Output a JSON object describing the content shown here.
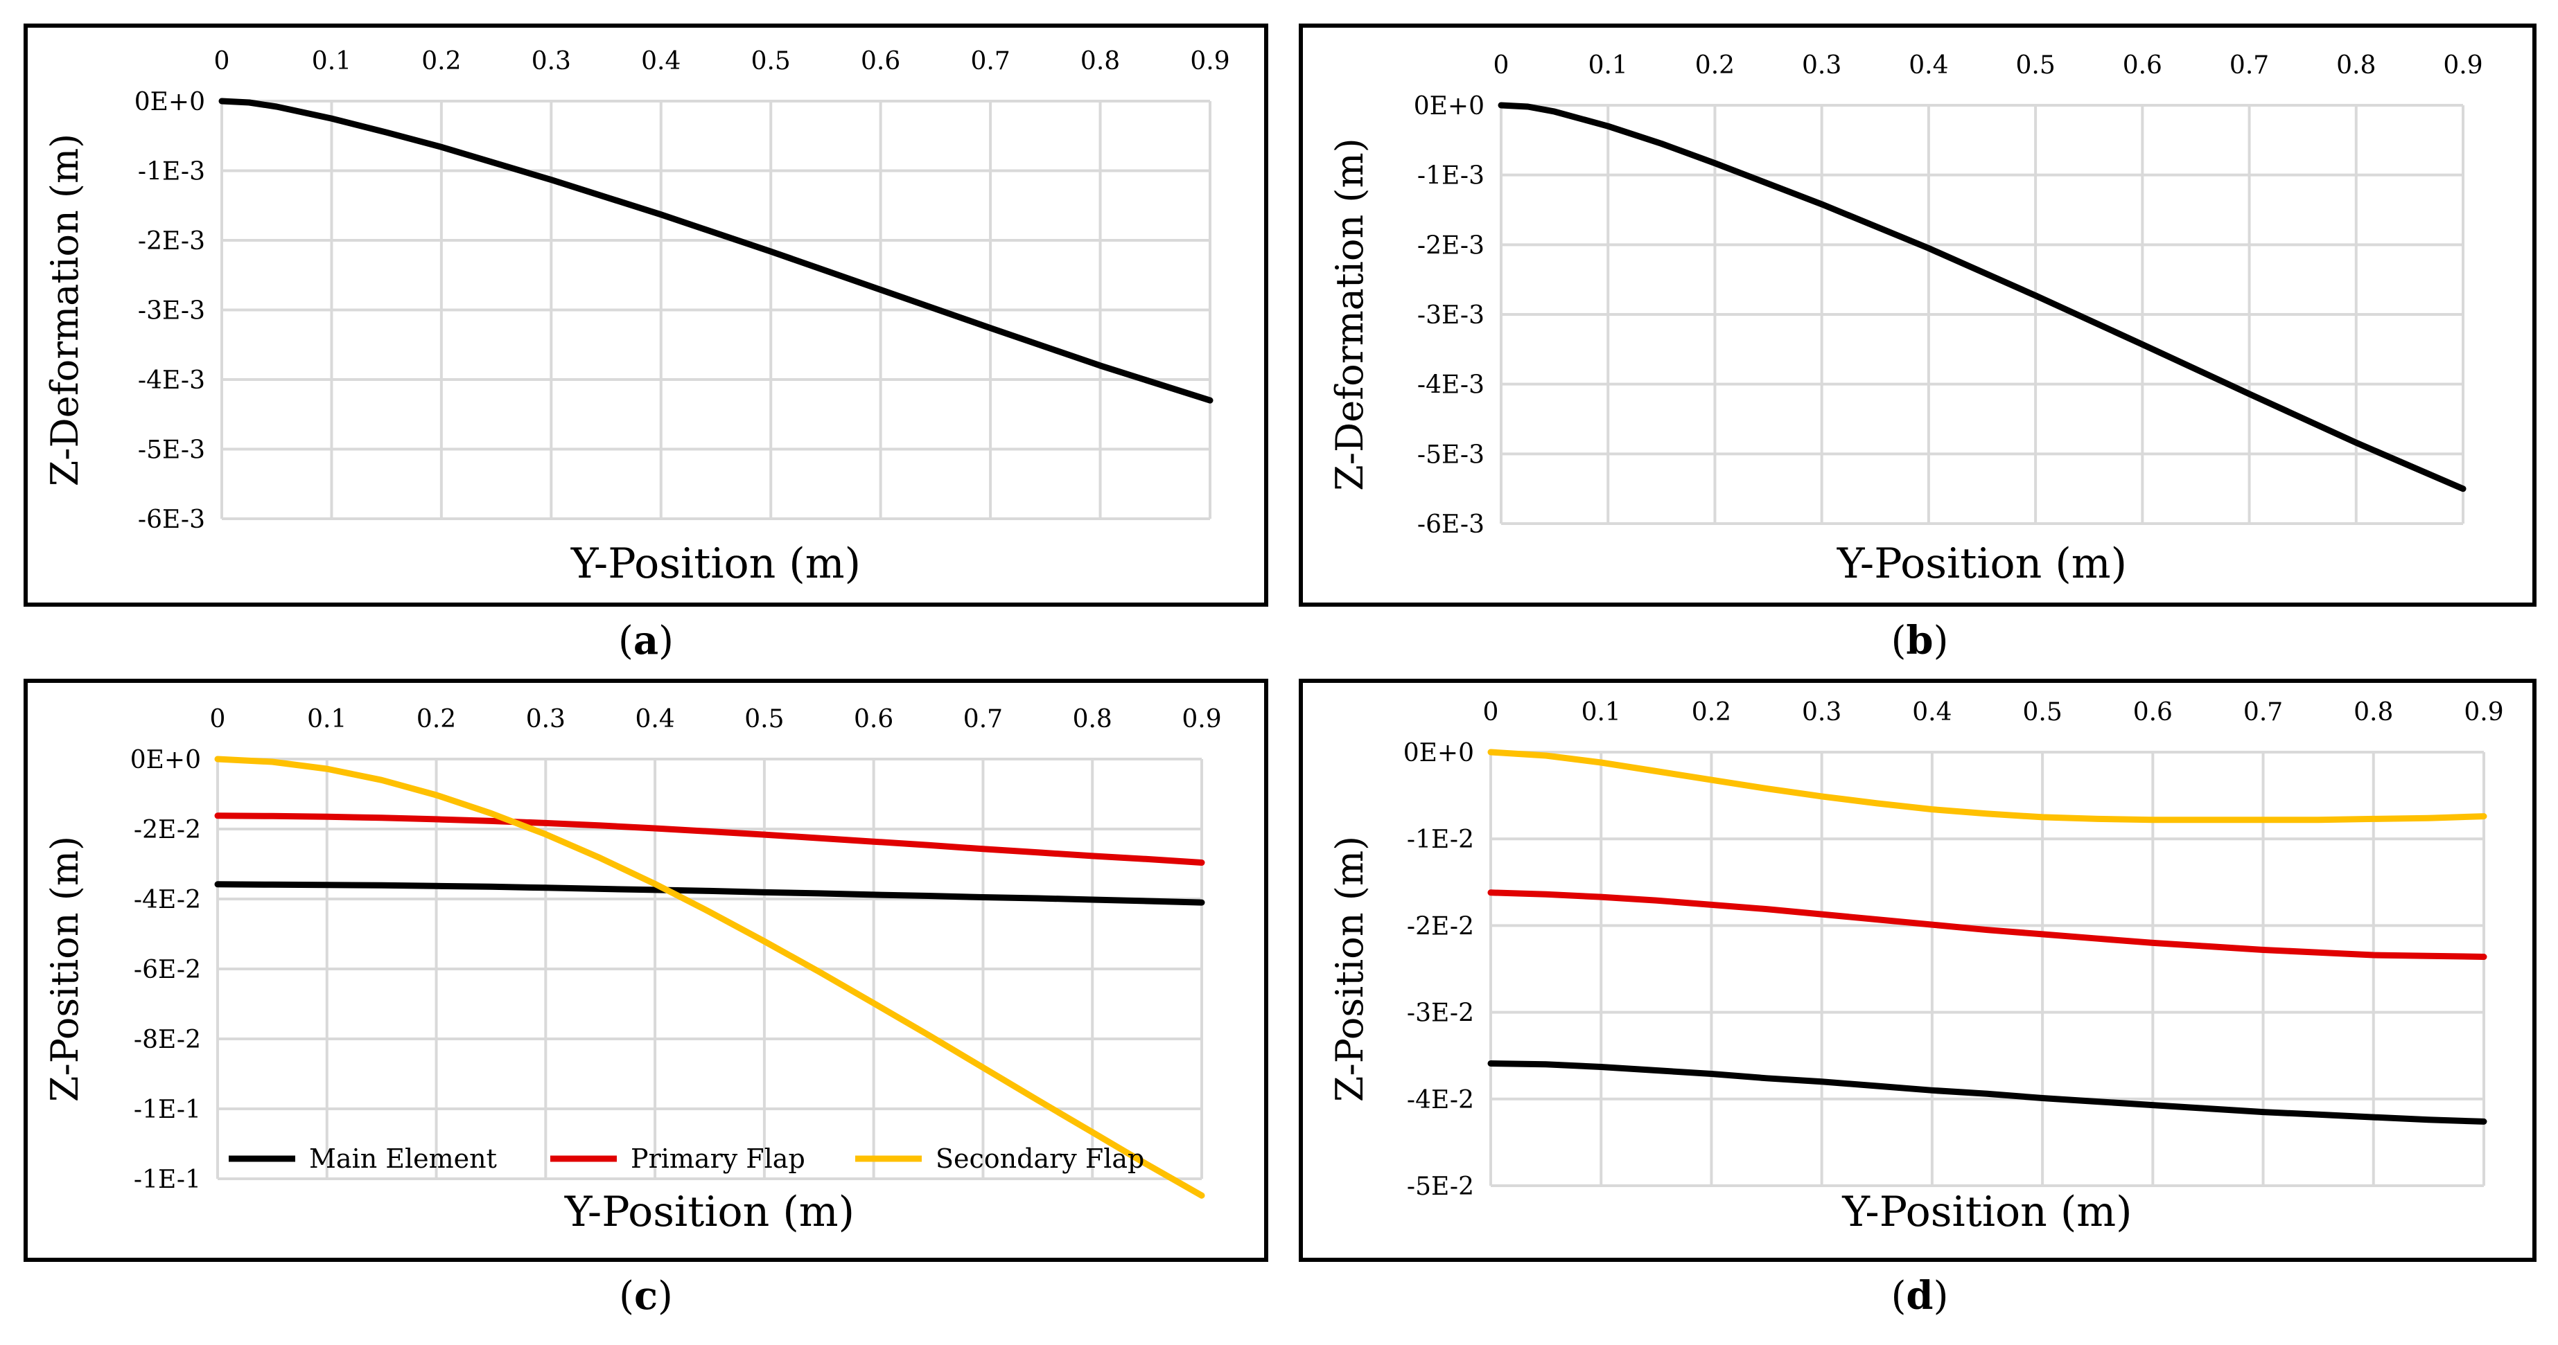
{
  "chart_data": [
    {
      "panel": "a",
      "type": "line",
      "xlabel": "Y-Position (m)",
      "ylabel": "Z-Deformation (m)",
      "xlim": [
        0,
        0.9
      ],
      "ylim": [
        -0.006,
        0
      ],
      "x_ticks": [
        "0",
        "0.1",
        "0.2",
        "0.3",
        "0.4",
        "0.5",
        "0.6",
        "0.7",
        "0.8",
        "0.9"
      ],
      "y_ticks": [
        "0E+0",
        "-1E-3",
        "-2E-3",
        "-3E-3",
        "-4E-3",
        "-5E-3",
        "-6E-3"
      ],
      "x_axis_position": "top",
      "grid": true,
      "legend": "none",
      "x": [
        0,
        0.025,
        0.05,
        0.1,
        0.15,
        0.2,
        0.3,
        0.4,
        0.5,
        0.6,
        0.7,
        0.8,
        0.9
      ],
      "series": [
        {
          "color": "#000000",
          "values": [
            0,
            -2e-05,
            -8e-05,
            -0.00025,
            -0.00045,
            -0.00066,
            -0.00113,
            -0.00163,
            -0.00216,
            -0.00271,
            -0.00326,
            -0.0038,
            -0.0043
          ]
        }
      ]
    },
    {
      "panel": "b",
      "type": "line",
      "xlabel": "Y-Position (m)",
      "ylabel": "Z-Deformation (m)",
      "xlim": [
        0,
        0.9
      ],
      "ylim": [
        -0.006,
        0
      ],
      "x_ticks": [
        "0",
        "0.1",
        "0.2",
        "0.3",
        "0.4",
        "0.5",
        "0.6",
        "0.7",
        "0.8",
        "0.9"
      ],
      "y_ticks": [
        "0E+0",
        "-1E-3",
        "-2E-3",
        "-3E-3",
        "-4E-3",
        "-5E-3",
        "-6E-3"
      ],
      "x_axis_position": "top",
      "grid": true,
      "legend": "none",
      "x": [
        0,
        0.025,
        0.05,
        0.1,
        0.15,
        0.2,
        0.3,
        0.4,
        0.5,
        0.6,
        0.7,
        0.8,
        0.9
      ],
      "series": [
        {
          "color": "#000000",
          "values": [
            0,
            -2e-05,
            -9e-05,
            -0.0003,
            -0.00055,
            -0.00083,
            -0.00142,
            -0.00205,
            -0.00273,
            -0.00343,
            -0.00414,
            -0.00484,
            -0.0055
          ]
        }
      ]
    },
    {
      "panel": "c",
      "type": "line",
      "xlabel": "Y-Position (m)",
      "ylabel": "Z-Position (m)",
      "xlim": [
        0,
        0.9
      ],
      "ylim": [
        -0.12,
        0
      ],
      "x_ticks": [
        "0",
        "0.1",
        "0.2",
        "0.3",
        "0.4",
        "0.5",
        "0.6",
        "0.7",
        "0.8",
        "0.9"
      ],
      "y_ticks": [
        "0E+0",
        "-2E-2",
        "-4E-2",
        "-6E-2",
        "-8E-2",
        "-1E-1",
        "-1E-1"
      ],
      "x_axis_position": "top",
      "grid": true,
      "legend": "bottom",
      "x": [
        0,
        0.05,
        0.1,
        0.15,
        0.2,
        0.25,
        0.3,
        0.35,
        0.4,
        0.45,
        0.5,
        0.55,
        0.6,
        0.65,
        0.7,
        0.75,
        0.8,
        0.85,
        0.9
      ],
      "series": [
        {
          "name": "Main Element",
          "color": "#000000",
          "values": [
            -0.0358,
            -0.0359,
            -0.036,
            -0.0361,
            -0.0363,
            -0.0365,
            -0.0368,
            -0.0371,
            -0.0374,
            -0.0377,
            -0.0381,
            -0.0384,
            -0.0388,
            -0.0391,
            -0.0395,
            -0.0398,
            -0.0402,
            -0.0406,
            -0.041
          ]
        },
        {
          "name": "Primary Flap",
          "color": "#e00000",
          "values": [
            -0.0162,
            -0.0163,
            -0.0165,
            -0.0168,
            -0.0172,
            -0.0177,
            -0.0183,
            -0.019,
            -0.0198,
            -0.0207,
            -0.0216,
            -0.0226,
            -0.0236,
            -0.0246,
            -0.0257,
            -0.0267,
            -0.0277,
            -0.0286,
            -0.0296
          ]
        },
        {
          "name": "Secondary Flap",
          "color": "#ffc000",
          "values": [
            0,
            -0.0008,
            -0.0028,
            -0.006,
            -0.0103,
            -0.0155,
            -0.0215,
            -0.0283,
            -0.0357,
            -0.0437,
            -0.0521,
            -0.0608,
            -0.0698,
            -0.0789,
            -0.0882,
            -0.0975,
            -0.1067,
            -0.1159,
            -0.1248
          ]
        }
      ]
    },
    {
      "panel": "d",
      "type": "line",
      "xlabel": "Y-Position (m)",
      "ylabel": "Z-Position (m)",
      "xlim": [
        0,
        0.9
      ],
      "ylim": [
        -0.05,
        0
      ],
      "x_ticks": [
        "0",
        "0.1",
        "0.2",
        "0.3",
        "0.4",
        "0.5",
        "0.6",
        "0.7",
        "0.8",
        "0.9"
      ],
      "y_ticks": [
        "0E+0",
        "-1E-2",
        "-2E-2",
        "-3E-2",
        "-4E-2",
        "-5E-2"
      ],
      "x_axis_position": "top",
      "grid": true,
      "legend": "none",
      "x": [
        0,
        0.05,
        0.1,
        0.15,
        0.2,
        0.25,
        0.3,
        0.35,
        0.4,
        0.45,
        0.5,
        0.55,
        0.6,
        0.65,
        0.7,
        0.75,
        0.8,
        0.85,
        0.9
      ],
      "series": [
        {
          "name": "Main Element",
          "color": "#000000",
          "values": [
            -0.0359,
            -0.036,
            -0.0363,
            -0.0367,
            -0.0371,
            -0.0376,
            -0.038,
            -0.0385,
            -0.039,
            -0.0394,
            -0.0399,
            -0.0403,
            -0.0407,
            -0.0411,
            -0.0415,
            -0.0418,
            -0.0421,
            -0.0424,
            -0.0426
          ]
        },
        {
          "name": "Primary Flap",
          "color": "#e00000",
          "values": [
            -0.0162,
            -0.0164,
            -0.0167,
            -0.0171,
            -0.0176,
            -0.0181,
            -0.0187,
            -0.0193,
            -0.0199,
            -0.0205,
            -0.021,
            -0.0215,
            -0.022,
            -0.0224,
            -0.0228,
            -0.0231,
            -0.0234,
            -0.0235,
            -0.0236
          ]
        },
        {
          "name": "Secondary Flap",
          "color": "#ffc000",
          "values": [
            0,
            -0.0004,
            -0.0012,
            -0.0022,
            -0.0032,
            -0.0042,
            -0.0051,
            -0.0059,
            -0.0066,
            -0.0071,
            -0.0075,
            -0.0077,
            -0.0078,
            -0.0078,
            -0.0078,
            -0.0078,
            -0.0077,
            -0.0076,
            -0.0074
          ]
        }
      ]
    }
  ],
  "panel_labels": {
    "a": {
      "open": "(",
      "letter": "a",
      "close": ")"
    },
    "b": {
      "open": "(",
      "letter": "b",
      "close": ")"
    },
    "c": {
      "open": "(",
      "letter": "c",
      "close": ")"
    },
    "d": {
      "open": "(",
      "letter": "d",
      "close": ")"
    }
  }
}
